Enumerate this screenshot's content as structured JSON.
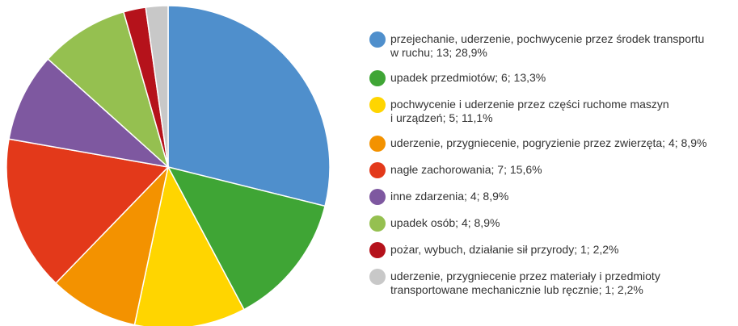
{
  "chart_data": {
    "type": "pie",
    "categories": [
      "przejechanie, uderzenie, pochwycenie przez środek transportu\nw ruchu; 13; 28,9%",
      "upadek przedmiotów; 6; 13,3%",
      "pochwycenie i uderzenie przez części ruchome maszyn\ni urządzeń; 5; 11,1%",
      "uderzenie, przygniecenie, pogryzienie przez zwierzęta; 4; 8,9%",
      "nagłe zachorowania; 7; 15,6%",
      "inne zdarzenia; 4; 8,9%",
      "upadek osób; 4; 8,9%",
      "pożar, wybuch, działanie sił przyrody; 1; 2,2%",
      "uderzenie, przygniecenie przez materiały i przedmioty\ntransportowane mechanicznie lub ręcznie; 1; 2,2%"
    ],
    "values": [
      13,
      6,
      5,
      4,
      7,
      4,
      4,
      1,
      1
    ],
    "colors": [
      "#4f8fcc",
      "#3fa535",
      "#ffd500",
      "#f39200",
      "#e3391a",
      "#7e58a0",
      "#95c050",
      "#b5121b",
      "#c8c8c8"
    ]
  }
}
